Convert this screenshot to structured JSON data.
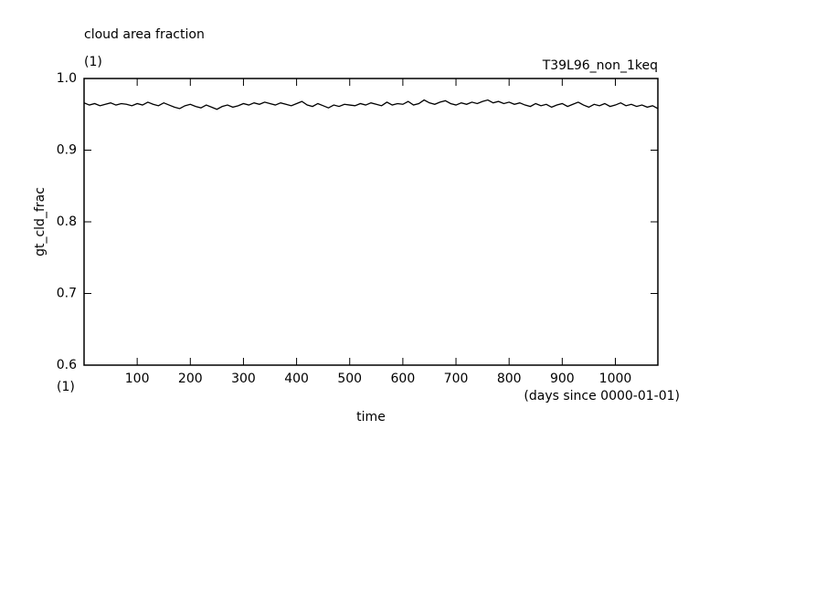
{
  "chart_data": {
    "type": "line",
    "title": "cloud area fraction",
    "subtitle": "(1)",
    "annotation": "T39L96_non_1keq",
    "y_label": "gt_cld_frac",
    "x_label": "time",
    "x_unit": "(1)",
    "x_note": "(days since 0000-01-01)",
    "color": "#000000",
    "xlim": [
      0,
      1080
    ],
    "xticks": [
      100,
      200,
      300,
      400,
      500,
      600,
      700,
      800,
      900,
      1000
    ],
    "ylim": [
      0.6,
      1
    ],
    "yticks": [
      0.6,
      0.7,
      0.8,
      0.9,
      {
        "value": 1,
        "label": "1.0"
      }
    ],
    "x": [
      0,
      10,
      20,
      30,
      40,
      50,
      60,
      70,
      80,
      90,
      100,
      110,
      120,
      130,
      140,
      150,
      160,
      170,
      180,
      190,
      200,
      210,
      220,
      230,
      240,
      250,
      260,
      270,
      280,
      290,
      300,
      310,
      320,
      330,
      340,
      350,
      360,
      370,
      380,
      390,
      400,
      410,
      420,
      430,
      440,
      450,
      460,
      470,
      480,
      490,
      500,
      510,
      520,
      530,
      540,
      550,
      560,
      570,
      580,
      590,
      600,
      610,
      620,
      630,
      640,
      650,
      660,
      670,
      680,
      690,
      700,
      710,
      720,
      730,
      740,
      750,
      760,
      770,
      780,
      790,
      800,
      810,
      820,
      830,
      840,
      850,
      860,
      870,
      880,
      890,
      900,
      910,
      920,
      930,
      940,
      950,
      960,
      970,
      980,
      990,
      1000,
      1010,
      1020,
      1030,
      1040,
      1050,
      1060,
      1070,
      1080
    ],
    "values": [
      0.966,
      0.963,
      0.965,
      0.962,
      0.964,
      0.966,
      0.963,
      0.965,
      0.964,
      0.962,
      0.965,
      0.963,
      0.967,
      0.964,
      0.962,
      0.966,
      0.963,
      0.96,
      0.958,
      0.962,
      0.964,
      0.961,
      0.959,
      0.963,
      0.96,
      0.957,
      0.961,
      0.963,
      0.96,
      0.962,
      0.965,
      0.963,
      0.966,
      0.964,
      0.967,
      0.965,
      0.963,
      0.966,
      0.964,
      0.962,
      0.965,
      0.968,
      0.963,
      0.961,
      0.965,
      0.962,
      0.959,
      0.963,
      0.961,
      0.964,
      0.963,
      0.962,
      0.965,
      0.963,
      0.966,
      0.964,
      0.962,
      0.967,
      0.963,
      0.965,
      0.964,
      0.968,
      0.963,
      0.965,
      0.97,
      0.966,
      0.964,
      0.967,
      0.969,
      0.965,
      0.963,
      0.966,
      0.964,
      0.967,
      0.965,
      0.968,
      0.97,
      0.966,
      0.968,
      0.965,
      0.967,
      0.964,
      0.966,
      0.963,
      0.961,
      0.965,
      0.962,
      0.964,
      0.96,
      0.963,
      0.965,
      0.961,
      0.964,
      0.967,
      0.963,
      0.96,
      0.964,
      0.962,
      0.965,
      0.961,
      0.963,
      0.966,
      0.962,
      0.964,
      0.961,
      0.963,
      0.96,
      0.962,
      0.958
    ]
  }
}
